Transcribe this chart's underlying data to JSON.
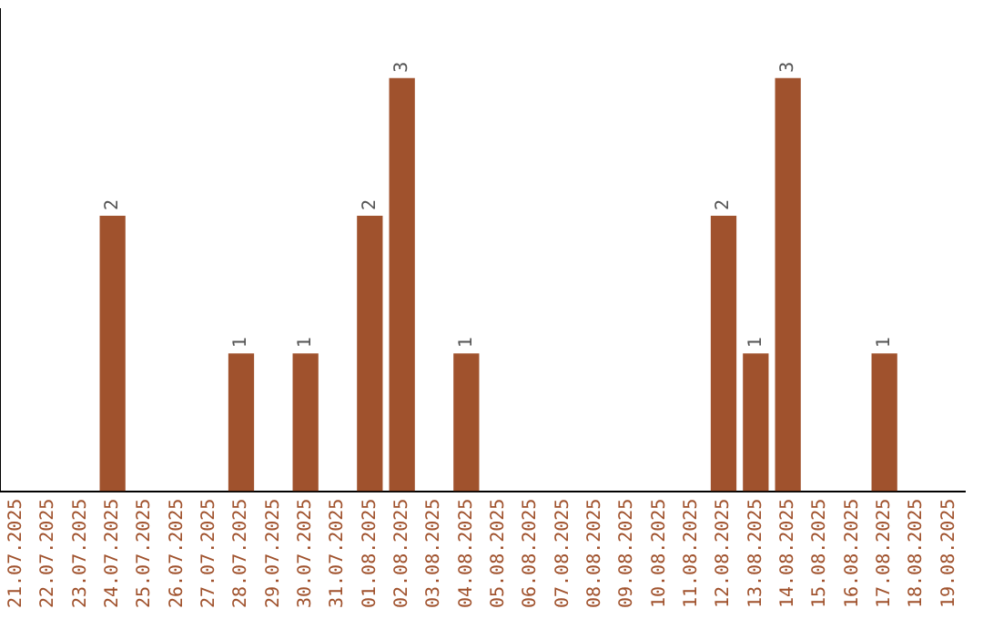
{
  "chart_data": {
    "type": "bar",
    "categories": [
      "21.07.2025",
      "22.07.2025",
      "23.07.2025",
      "24.07.2025",
      "25.07.2025",
      "26.07.2025",
      "27.07.2025",
      "28.07.2025",
      "29.07.2025",
      "30.07.2025",
      "31.07.2025",
      "01.08.2025",
      "02.08.2025",
      "03.08.2025",
      "04.08.2025",
      "05.08.2025",
      "06.08.2025",
      "07.08.2025",
      "08.08.2025",
      "09.08.2025",
      "10.08.2025",
      "11.08.2025",
      "12.08.2025",
      "13.08.2025",
      "14.08.2025",
      "15.08.2025",
      "16.08.2025",
      "17.08.2025",
      "18.08.2025",
      "19.08.2025"
    ],
    "values": [
      0,
      0,
      0,
      2,
      0,
      0,
      0,
      1,
      0,
      1,
      0,
      2,
      3,
      0,
      1,
      0,
      0,
      0,
      0,
      0,
      0,
      0,
      2,
      1,
      3,
      0,
      0,
      1,
      0,
      0
    ],
    "value_labels": [
      null,
      null,
      null,
      "2",
      null,
      null,
      null,
      "1",
      null,
      "1",
      null,
      "2",
      "3",
      null,
      "1",
      null,
      null,
      null,
      null,
      null,
      null,
      null,
      "2",
      "1",
      "3",
      null,
      null,
      "1",
      null,
      null
    ],
    "color": "#a0522d",
    "grid": false,
    "legend": false,
    "tick_labels": "x"
  }
}
